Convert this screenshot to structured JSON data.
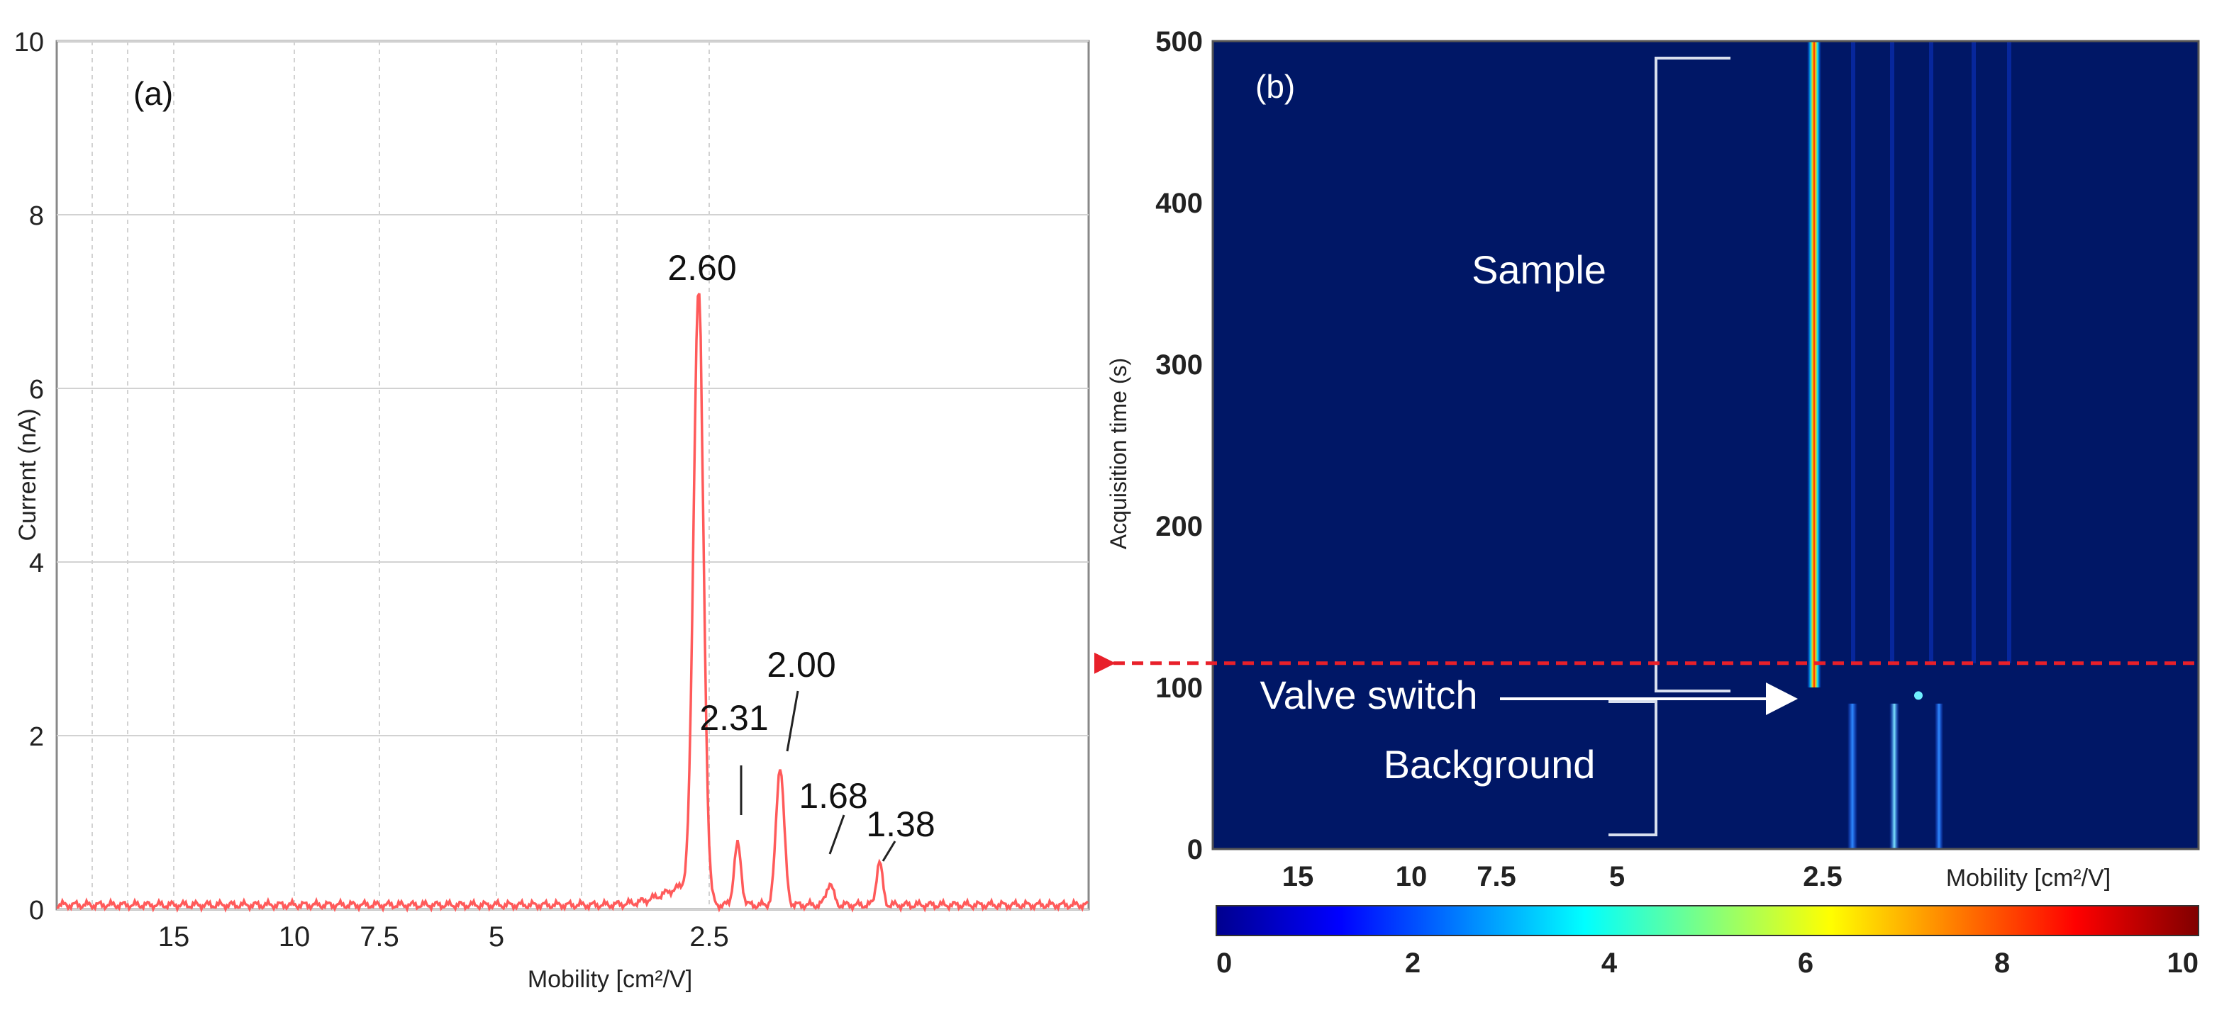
{
  "chart_data": [
    {
      "type": "line",
      "panel_label": "(a)",
      "xlabel": "Mobility [cm²/V]",
      "ylabel": "Current  (nA)",
      "ylim": [
        0,
        10
      ],
      "y_ticks": [
        "0",
        "2",
        "4",
        "6",
        "8",
        "10"
      ],
      "x_ticks": [
        "15",
        "10",
        "7.5",
        "5",
        "2.5"
      ],
      "grid": true,
      "series": [
        {
          "color": "#ff5a5a",
          "baseline": 0.05,
          "peaks": [
            {
              "label": "2.60",
              "height": 6.9
            },
            {
              "label": "2.31",
              "height": 0.75
            },
            {
              "label": "2.00",
              "height": 1.65
            },
            {
              "label": "1.68",
              "height": 0.3
            },
            {
              "label": "1.38",
              "height": 0.55
            }
          ]
        }
      ]
    },
    {
      "type": "heatmap",
      "panel_label": "(b)",
      "xlabel": "Mobility [cm²/V]",
      "ylabel": "Acquisition time (s)",
      "ylim": [
        0,
        500
      ],
      "y_ticks": [
        "0",
        "100",
        "200",
        "300",
        "400",
        "500"
      ],
      "x_ticks": [
        "15",
        "10",
        "7.5",
        "5",
        "2.5"
      ],
      "colorbar": {
        "min": 0,
        "max": 10,
        "ticks": [
          "0",
          "2",
          "4",
          "6",
          "8",
          "10"
        ],
        "colormap": "jet"
      },
      "valve_switch_time": 115,
      "annotations": {
        "sample": "Sample",
        "valve_switch": "Valve switch",
        "background": "Background"
      }
    }
  ]
}
